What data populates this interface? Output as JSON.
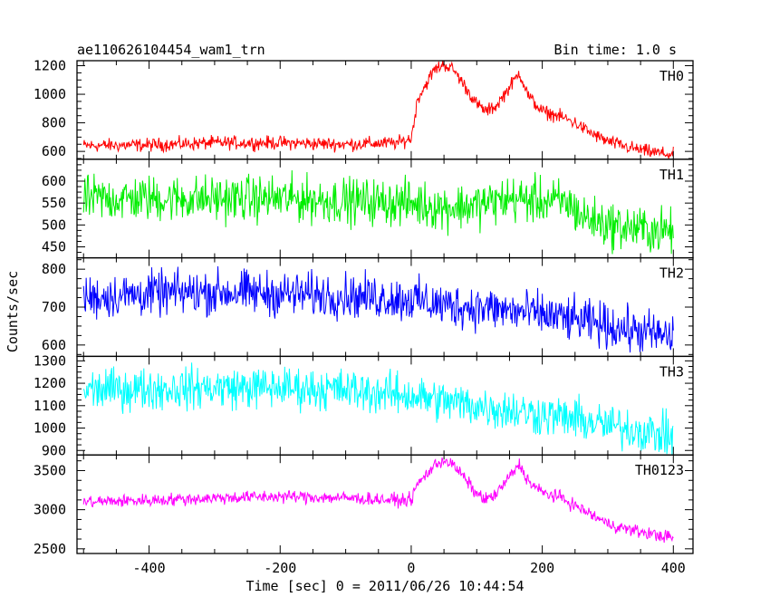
{
  "header": {
    "title": "ae110626104454_wam1_trn",
    "bin_time": "Bin time: 1.0 s"
  },
  "chart_data": {
    "type": "line",
    "title": "ae110626104454_wam1_trn",
    "xlabel": "Time [sec] 0 = 2011/06/26 10:44:54",
    "ylabel": "Counts/sec",
    "xlim": [
      -510,
      430
    ],
    "x_ticks": [
      -400,
      -200,
      0,
      200,
      400
    ],
    "panels": [
      {
        "name": "TH0",
        "color": "#ff0000",
        "ylim": [
          545,
          1235
        ],
        "y_ticks": [
          600,
          800,
          1000,
          1200
        ],
        "x": [
          -500,
          -400,
          -300,
          -200,
          -100,
          -20,
          0,
          10,
          20,
          35,
          50,
          65,
          80,
          100,
          115,
          130,
          150,
          165,
          180,
          200,
          230,
          250,
          270,
          290,
          300,
          330,
          360,
          400
        ],
        "y": [
          640,
          645,
          660,
          660,
          650,
          660,
          690,
          970,
          1050,
          1170,
          1210,
          1170,
          1070,
          930,
          880,
          920,
          1050,
          1150,
          980,
          880,
          840,
          800,
          740,
          690,
          670,
          630,
          600,
          575
        ],
        "noise": 40
      },
      {
        "name": "TH1",
        "color": "#00ee00",
        "ylim": [
          425,
          650
        ],
        "y_ticks": [
          450,
          500,
          550,
          600
        ],
        "x": [
          -500,
          -400,
          -300,
          -200,
          -100,
          0,
          50,
          100,
          150,
          200,
          240,
          260,
          300,
          350,
          400
        ],
        "y": [
          560,
          560,
          560,
          560,
          555,
          550,
          540,
          545,
          560,
          555,
          550,
          520,
          500,
          490,
          485
        ],
        "noise": 45
      },
      {
        "name": "TH2",
        "color": "#0000ff",
        "ylim": [
          570,
          830
        ],
        "y_ticks": [
          600,
          700,
          800
        ],
        "x": [
          -500,
          -400,
          -300,
          -200,
          -100,
          0,
          50,
          100,
          150,
          200,
          250,
          300,
          350,
          400
        ],
        "y": [
          725,
          735,
          740,
          735,
          730,
          720,
          705,
          700,
          690,
          680,
          665,
          650,
          635,
          620
        ],
        "noise": 50
      },
      {
        "name": "TH3",
        "color": "#00ffff",
        "ylim": [
          880,
          1320
        ],
        "y_ticks": [
          900,
          1000,
          1100,
          1200,
          1300
        ],
        "x": [
          -500,
          -400,
          -300,
          -200,
          -100,
          0,
          50,
          100,
          150,
          200,
          250,
          300,
          350,
          400
        ],
        "y": [
          1170,
          1175,
          1180,
          1180,
          1170,
          1145,
          1120,
          1100,
          1080,
          1060,
          1040,
          1010,
          990,
          960
        ],
        "noise": 80
      },
      {
        "name": "TH0123",
        "color": "#ff00ff",
        "ylim": [
          2440,
          3700
        ],
        "y_ticks": [
          2500,
          3000,
          3500
        ],
        "x": [
          -500,
          -400,
          -300,
          -200,
          -100,
          -20,
          0,
          10,
          20,
          35,
          50,
          65,
          80,
          100,
          115,
          130,
          150,
          165,
          180,
          200,
          230,
          250,
          270,
          300,
          330,
          360,
          400
        ],
        "y": [
          3100,
          3120,
          3150,
          3170,
          3150,
          3120,
          3130,
          3330,
          3420,
          3560,
          3640,
          3560,
          3420,
          3200,
          3130,
          3200,
          3420,
          3580,
          3350,
          3220,
          3150,
          3050,
          2960,
          2820,
          2750,
          2700,
          2640
        ],
        "noise": 70
      }
    ]
  }
}
